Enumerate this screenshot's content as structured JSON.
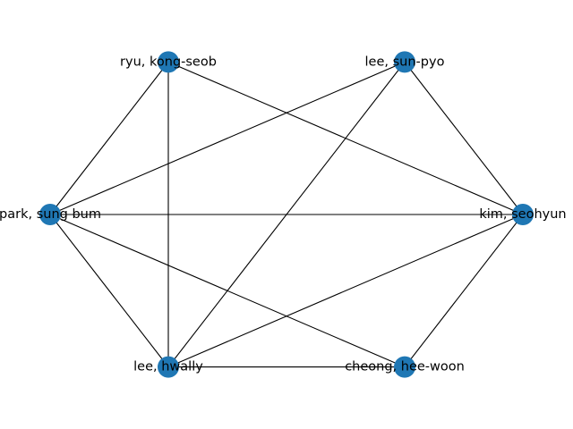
{
  "graph": {
    "node_color": "#1f77b4",
    "edge_color": "#000000",
    "nodes": [
      {
        "id": "ryu",
        "label": "ryu, kong-seob"
      },
      {
        "id": "lee_s",
        "label": "lee, sun-pyo"
      },
      {
        "id": "park",
        "label": "park, sung bum"
      },
      {
        "id": "kim",
        "label": "kim, seohyun"
      },
      {
        "id": "lee_h",
        "label": "lee, hwally"
      },
      {
        "id": "cheong",
        "label": "cheong, hee-woon"
      }
    ],
    "edges": [
      [
        "ryu",
        "park"
      ],
      [
        "ryu",
        "lee_h"
      ],
      [
        "ryu",
        "kim"
      ],
      [
        "lee_s",
        "park"
      ],
      [
        "lee_s",
        "lee_h"
      ],
      [
        "lee_s",
        "kim"
      ],
      [
        "park",
        "kim"
      ],
      [
        "park",
        "lee_h"
      ],
      [
        "park",
        "cheong"
      ],
      [
        "kim",
        "lee_h"
      ],
      [
        "kim",
        "cheong"
      ],
      [
        "lee_h",
        "cheong"
      ]
    ]
  }
}
